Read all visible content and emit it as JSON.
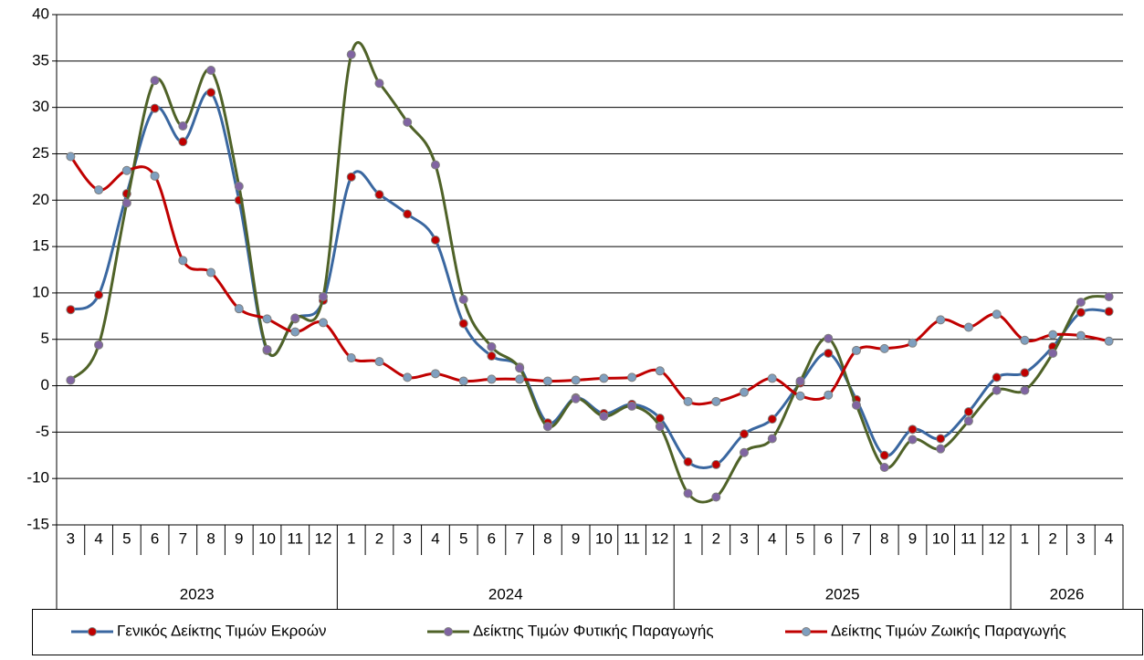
{
  "chart_data": {
    "type": "line",
    "categories": [
      "3",
      "4",
      "5",
      "6",
      "7",
      "8",
      "9",
      "10",
      "11",
      "12",
      "1",
      "2",
      "3",
      "4",
      "5",
      "6",
      "7",
      "8",
      "9",
      "10",
      "11",
      "12",
      "1",
      "2",
      "3",
      "4",
      "5",
      "6",
      "7",
      "8",
      "9",
      "10",
      "11",
      "12",
      "1",
      "2",
      "3",
      "4"
    ],
    "years": [
      "2023",
      "2024",
      "2025",
      "2026"
    ],
    "series": [
      {
        "name": "Γενικός Δείκτης Τιμών Εκροών",
        "color": "#3a67a0",
        "marker_color": "#c00000",
        "values": [
          8.2,
          9.8,
          20.7,
          29.9,
          26.3,
          31.6,
          20.0,
          3.8,
          7.2,
          9.2,
          22.5,
          20.6,
          18.5,
          15.7,
          6.7,
          3.2,
          2.0,
          -4.0,
          -1.3,
          -3.0,
          -2.0,
          -3.5,
          -8.2,
          -8.5,
          -5.2,
          -3.6,
          0.3,
          3.5,
          -1.5,
          -7.5,
          -4.7,
          -5.7,
          -2.8,
          0.9,
          1.4,
          4.2,
          7.9,
          8.0
        ]
      },
      {
        "name": "Δείκτης Τιμών Φυτικής Παραγωγής",
        "color": "#4f6228",
        "marker_color": "#8064a2",
        "values": [
          0.6,
          4.4,
          19.7,
          32.9,
          28.0,
          34.0,
          21.5,
          3.9,
          7.3,
          9.6,
          35.7,
          32.6,
          28.4,
          23.8,
          9.3,
          4.2,
          1.9,
          -4.4,
          -1.4,
          -3.3,
          -2.2,
          -4.4,
          -11.6,
          -12.0,
          -7.2,
          -5.7,
          0.5,
          5.1,
          -2.1,
          -8.8,
          -5.8,
          -6.8,
          -3.8,
          -0.5,
          -0.5,
          3.5,
          9.0,
          9.6
        ]
      },
      {
        "name": "Δείκτης Τιμών Ζωικής Παραγωγής",
        "color": "#c00000",
        "marker_color": "#7f9fbf",
        "values": [
          24.7,
          21.1,
          23.2,
          22.6,
          13.5,
          12.2,
          8.3,
          7.2,
          5.8,
          6.8,
          3.0,
          2.6,
          0.9,
          1.3,
          0.5,
          0.7,
          0.7,
          0.5,
          0.6,
          0.8,
          0.9,
          1.6,
          -1.7,
          -1.7,
          -0.7,
          0.8,
          -1.1,
          -1.0,
          3.8,
          4.0,
          4.6,
          7.1,
          6.3,
          7.7,
          4.9,
          5.5,
          5.4,
          4.8
        ]
      }
    ],
    "ylim": [
      -15,
      40
    ],
    "yticks": [
      -15,
      -10,
      -5,
      0,
      5,
      10,
      15,
      20,
      25,
      30,
      35,
      40
    ],
    "grid": true,
    "smooth": true,
    "legend": "bottom"
  }
}
